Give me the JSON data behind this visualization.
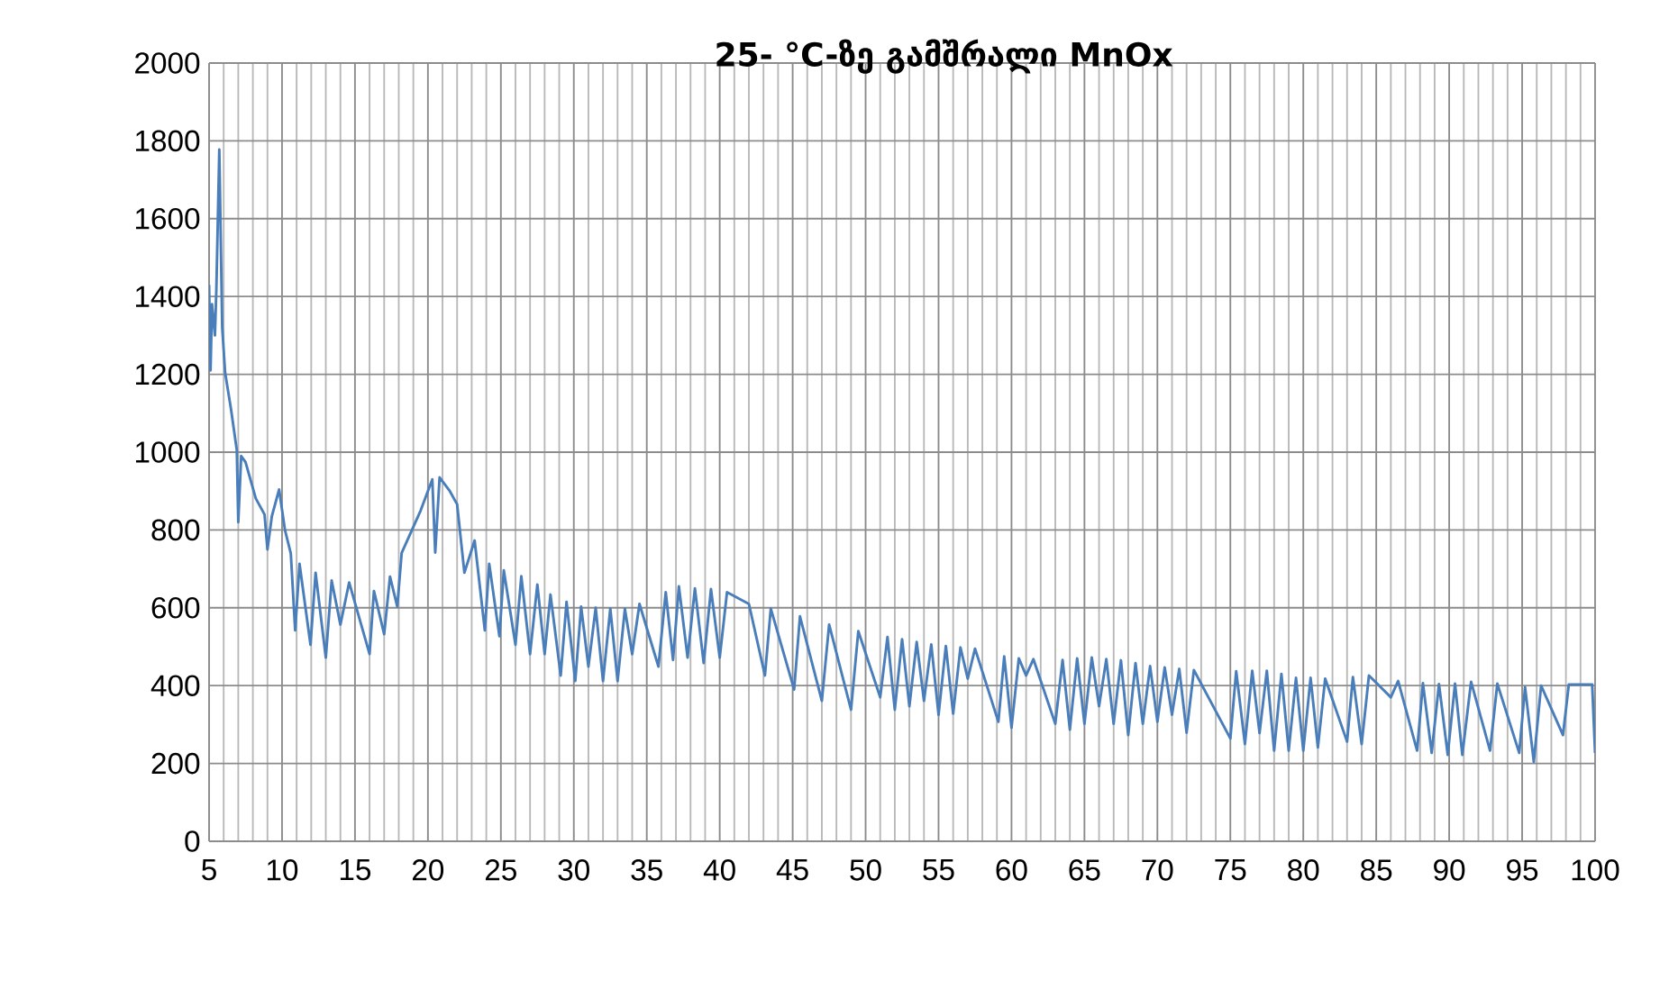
{
  "chart_data": {
    "type": "line",
    "title": "25- °C-ზე გამშრალი MnOx",
    "x": [
      5.0,
      5.1,
      5.2,
      5.4,
      5.5,
      5.7,
      5.9,
      6.1,
      6.5,
      6.9,
      7.0,
      7.2,
      7.5,
      8.2,
      8.8,
      9.0,
      9.3,
      9.8,
      10.2,
      10.6,
      10.9,
      11.2,
      11.95,
      12.3,
      13.0,
      13.4,
      14.0,
      14.6,
      16.0,
      16.3,
      17.0,
      17.4,
      17.9,
      18.2,
      19.5,
      20.3,
      20.5,
      20.8,
      21.5,
      22.0,
      22.5,
      23.2,
      23.9,
      24.2,
      24.9,
      25.2,
      26.0,
      26.4,
      27.0,
      27.5,
      28.0,
      28.4,
      29.1,
      29.5,
      30.1,
      30.5,
      31.0,
      31.5,
      32.0,
      32.5,
      33.0,
      33.5,
      34.0,
      34.5,
      35.8,
      36.3,
      36.8,
      37.2,
      37.8,
      38.3,
      38.9,
      39.4,
      40.0,
      40.5,
      42.0,
      43.1,
      43.5,
      45.1,
      45.5,
      47.0,
      47.5,
      49.0,
      49.5,
      51.0,
      51.5,
      52.0,
      52.5,
      53.0,
      53.5,
      54.0,
      54.5,
      55.0,
      55.5,
      56.0,
      56.5,
      57.0,
      57.5,
      59.1,
      59.5,
      60.0,
      60.5,
      61.0,
      61.5,
      63.0,
      63.5,
      64.0,
      64.5,
      65.0,
      65.5,
      66.0,
      66.5,
      67.0,
      67.5,
      68.0,
      68.5,
      69.0,
      69.5,
      70.0,
      70.5,
      71.0,
      71.5,
      72.0,
      72.5,
      75.0,
      75.4,
      76.0,
      76.5,
      77.0,
      77.5,
      78.0,
      78.5,
      79.0,
      79.5,
      80.0,
      80.5,
      81.0,
      81.5,
      83.0,
      83.4,
      84.0,
      84.5,
      86.0,
      86.5,
      87.8,
      88.2,
      88.8,
      89.3,
      89.9,
      90.4,
      90.9,
      91.5,
      92.8,
      93.3,
      94.8,
      95.2,
      95.8,
      96.3,
      97.8,
      98.2,
      99.8,
      100.0
    ],
    "values": [
      1430,
      1210,
      1380,
      1300,
      1420,
      1778,
      1320,
      1204,
      1111,
      1005,
      820,
      990,
      974,
      881,
      840,
      750,
      835,
      904,
      800,
      740,
      542,
      713,
      505,
      690,
      472,
      670,
      557,
      665,
      481,
      643,
      532,
      680,
      603,
      741,
      850,
      930,
      742,
      935,
      900,
      866,
      690,
      773,
      542,
      713,
      527,
      696,
      505,
      681,
      481,
      660,
      481,
      634,
      426,
      615,
      412,
      603,
      449,
      600,
      412,
      598,
      412,
      597,
      481,
      610,
      449,
      640,
      466,
      655,
      472,
      650,
      458,
      648,
      472,
      640,
      610,
      426,
      598,
      390,
      578,
      361,
      557,
      338,
      540,
      370,
      525,
      338,
      519,
      347,
      512,
      361,
      506,
      325,
      502,
      328,
      498,
      418,
      495,
      307,
      475,
      292,
      470,
      426,
      468,
      302,
      466,
      287,
      470,
      302,
      472,
      347,
      468,
      302,
      465,
      273,
      458,
      302,
      450,
      307,
      447,
      325,
      443,
      279,
      440,
      264,
      437,
      250,
      438,
      278,
      438,
      233,
      430,
      233,
      420,
      233,
      420,
      241,
      418,
      256,
      422,
      250,
      426,
      370,
      412,
      233,
      406,
      227,
      404,
      222,
      405,
      222,
      410,
      233,
      405,
      227,
      396,
      204,
      400,
      273,
      403,
      403,
      227
    ],
    "color": "#4a7ebb",
    "xlim": [
      5,
      100
    ],
    "xticks": [
      5,
      10,
      15,
      20,
      25,
      30,
      35,
      40,
      45,
      50,
      55,
      60,
      65,
      70,
      75,
      80,
      85,
      90,
      95,
      100
    ],
    "ylim": [
      0,
      2000
    ],
    "yticks": [
      0,
      200,
      400,
      600,
      800,
      1000,
      1200,
      1400,
      1600,
      1800,
      2000
    ],
    "grid": true
  }
}
